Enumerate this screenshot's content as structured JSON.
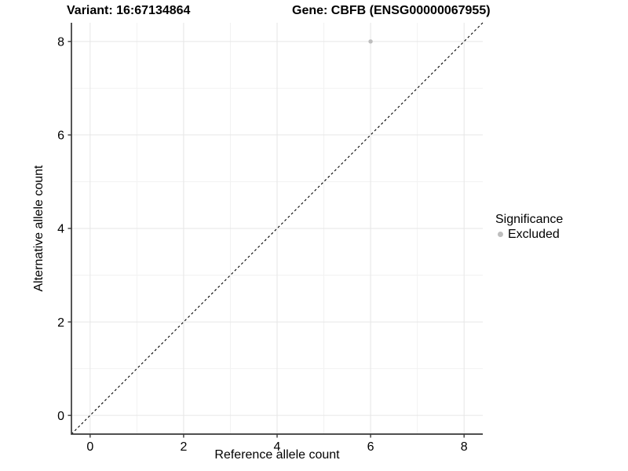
{
  "chart_data": {
    "type": "scatter",
    "titles": {
      "left": "Variant: 16:67134864",
      "right": "Gene: CBFB (ENSG00000067955)"
    },
    "xlabel": "Reference allele count",
    "ylabel": "Alternative allele count",
    "xlim": [
      -0.4,
      8.4
    ],
    "ylim": [
      -0.4,
      8.4
    ],
    "xticks": [
      0,
      2,
      4,
      6,
      8
    ],
    "yticks": [
      0,
      2,
      4,
      6,
      8
    ],
    "x_minor": [
      1,
      3,
      5,
      7
    ],
    "y_minor": [
      1,
      3,
      5,
      7
    ],
    "grid": true,
    "points": [
      {
        "x": 6,
        "y": 8,
        "significance": "Excluded"
      }
    ],
    "identity_line": {
      "style": "dashed",
      "slope": 1,
      "intercept": 0
    },
    "legend": {
      "title": "Significance",
      "position": "right",
      "items": [
        {
          "label": "Excluded",
          "color": "#bebebe"
        }
      ]
    },
    "colors": {
      "point": "#bebebe",
      "grid_major": "#e6e6e6",
      "grid_minor": "#f2f2f2",
      "axis": "#383838",
      "identity_line": "#000000",
      "text": "#000000",
      "background": "#ffffff"
    }
  }
}
